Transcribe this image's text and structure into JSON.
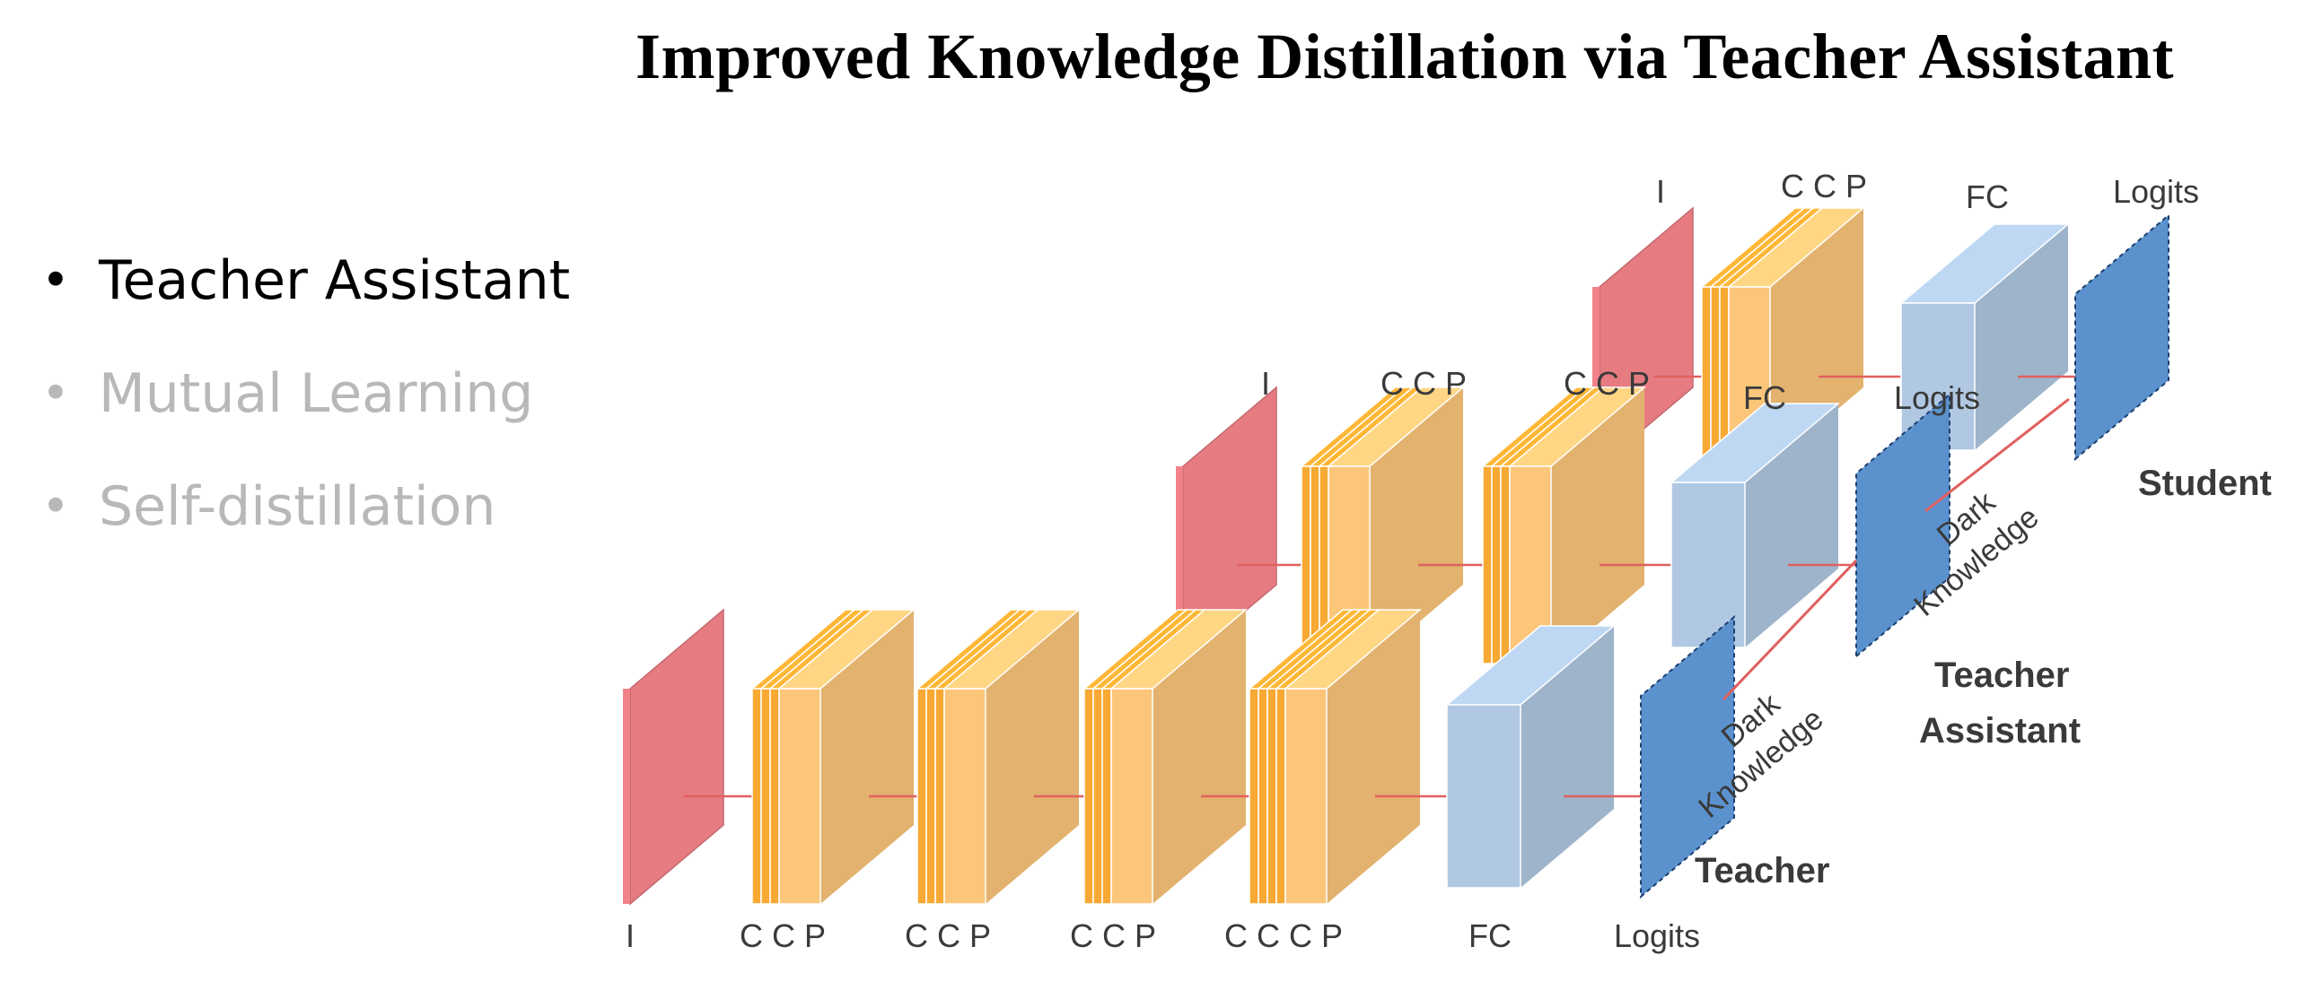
{
  "title": "Improved Knowledge Distillation via Teacher Assistant",
  "bullets": [
    {
      "label": "Teacher Assistant",
      "active": true
    },
    {
      "label": "Mutual Learning",
      "active": false
    },
    {
      "label": "Self-distillation",
      "active": false
    }
  ],
  "diagram": {
    "colors": {
      "input": "#e67c82",
      "conv": "#f7a933",
      "pool": "#fbc67a",
      "fc": "#b0c8e2",
      "logits": "#5b92ce",
      "arrow": "#e0605f"
    },
    "teacher": {
      "name": "Teacher",
      "labels": [
        "I",
        "C C  P",
        "C C  P",
        "C C  P",
        "C C C  P",
        "FC",
        "Logits"
      ]
    },
    "assistant": {
      "name_line1": "Teacher",
      "name_line2": "Assistant",
      "labels": [
        "I",
        "C C  P",
        "C C  P",
        "FC",
        "Logits"
      ]
    },
    "student": {
      "name": "Student",
      "labels": [
        "I",
        "C C  P",
        "FC",
        "Logits"
      ]
    },
    "dark_knowledge_1": "Dark",
    "dark_knowledge_2": "Knowledge"
  }
}
